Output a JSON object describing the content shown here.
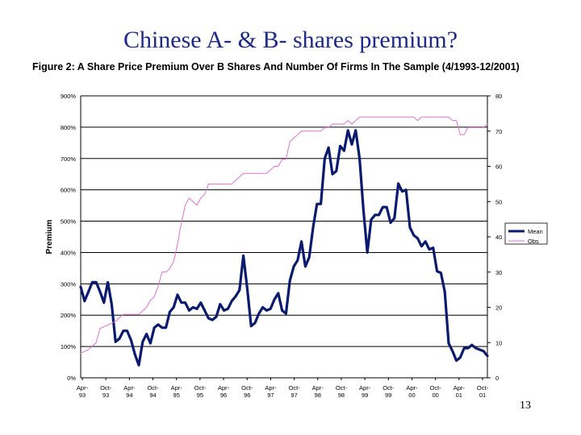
{
  "slide": {
    "title": "Chinese A- & B- shares premium?",
    "figure_title": "Figure 2: A Share Price Premium Over B Shares And Number Of Firms In The Sample (4/1993-12/2001)",
    "page_number": "13"
  },
  "chart_data": {
    "type": "line",
    "title": "Figure 2: A Share Price Premium Over B Shares And Number Of Firms In The Sample (4/1993-12/2001)",
    "ylabel": "Premium",
    "xlabel": "",
    "ylim": [
      0,
      900
    ],
    "y2lim": [
      0,
      80
    ],
    "yticks": [
      "0%",
      "100%",
      "200%",
      "300%",
      "400%",
      "500%",
      "600%",
      "700%",
      "800%",
      "900%"
    ],
    "y2ticks": [
      "0",
      "10",
      "20",
      "30",
      "40",
      "50",
      "60",
      "70",
      "80"
    ],
    "xticks": [
      [
        "Apr-",
        "93"
      ],
      [
        "Oct-",
        "93"
      ],
      [
        "Apr-",
        "94"
      ],
      [
        "Oct-",
        "94"
      ],
      [
        "Apr-",
        "95"
      ],
      [
        "Oct-",
        "95"
      ],
      [
        "Apr-",
        "96"
      ],
      [
        "Oct-",
        "96"
      ],
      [
        "Apr-",
        "97"
      ],
      [
        "Oct-",
        "97"
      ],
      [
        "Apr-",
        "98"
      ],
      [
        "Oct-",
        "98"
      ],
      [
        "Apr-",
        "99"
      ],
      [
        "Oct-",
        "99"
      ],
      [
        "Apr-",
        "00"
      ],
      [
        "Oct-",
        "00"
      ],
      [
        "Apr-",
        "01"
      ],
      [
        "Oct-",
        "01"
      ]
    ],
    "x_range": [
      0,
      105
    ],
    "grid": true,
    "legend_position": "right",
    "series": [
      {
        "name": "Mean",
        "axis": "left",
        "color": "#0a1a6e",
        "x": [
          0,
          1,
          2,
          3,
          4,
          5,
          6,
          7,
          8,
          9,
          10,
          11,
          12,
          13,
          14,
          15,
          16,
          17,
          18,
          19,
          20,
          21,
          22,
          23,
          24,
          25,
          26,
          27,
          28,
          29,
          30,
          31,
          32,
          33,
          34,
          35,
          36,
          37,
          38,
          39,
          40,
          41,
          42,
          43,
          44,
          45,
          46,
          47,
          48,
          49,
          50,
          51,
          52,
          53,
          54,
          55,
          56,
          57,
          58,
          59,
          60,
          61,
          62,
          63,
          64,
          65,
          66,
          67,
          68,
          69,
          70,
          71,
          72,
          73,
          74,
          75,
          76,
          77,
          78,
          79,
          80,
          81,
          82,
          83,
          84,
          85,
          86,
          87,
          88,
          89,
          90,
          91,
          92,
          93,
          94,
          95,
          96,
          97,
          98,
          99,
          100,
          101,
          102,
          103,
          104,
          105
        ],
        "values": [
          290,
          245,
          275,
          305,
          305,
          275,
          240,
          305,
          235,
          115,
          125,
          150,
          150,
          120,
          75,
          40,
          115,
          140,
          110,
          160,
          170,
          160,
          160,
          210,
          225,
          265,
          240,
          240,
          215,
          225,
          220,
          240,
          215,
          190,
          185,
          195,
          235,
          215,
          220,
          245,
          260,
          280,
          390,
          285,
          165,
          175,
          205,
          225,
          215,
          220,
          250,
          270,
          215,
          205,
          310,
          355,
          375,
          435,
          355,
          385,
          480,
          555,
          555,
          700,
          735,
          650,
          660,
          740,
          725,
          790,
          745,
          790,
          700,
          535,
          400,
          505,
          520,
          520,
          545,
          545,
          495,
          510,
          620,
          595,
          600,
          480,
          455,
          445,
          420,
          435,
          410,
          415,
          340,
          335,
          275,
          110,
          85,
          55,
          65,
          95,
          95,
          105,
          95,
          90,
          85,
          70
        ]
      },
      {
        "name": "Obs",
        "axis": "right",
        "color": "#e26fd6",
        "x": [
          0,
          1,
          2,
          3,
          4,
          5,
          6,
          7,
          8,
          9,
          10,
          11,
          12,
          13,
          14,
          15,
          16,
          17,
          18,
          19,
          20,
          21,
          22,
          23,
          24,
          25,
          26,
          27,
          28,
          29,
          30,
          31,
          32,
          33,
          34,
          35,
          36,
          37,
          38,
          39,
          40,
          41,
          42,
          43,
          44,
          45,
          46,
          47,
          48,
          49,
          50,
          51,
          52,
          53,
          54,
          55,
          56,
          57,
          58,
          59,
          60,
          61,
          62,
          63,
          64,
          65,
          66,
          67,
          68,
          69,
          70,
          71,
          72,
          73,
          74,
          75,
          76,
          77,
          78,
          79,
          80,
          81,
          82,
          83,
          84,
          85,
          86,
          87,
          88,
          89,
          90,
          91,
          92,
          93,
          94,
          95,
          96,
          97,
          98,
          99,
          100,
          101,
          102,
          103,
          104,
          105
        ],
        "values": [
          7,
          7.5,
          8,
          9,
          10,
          14,
          14.5,
          15,
          15.5,
          16,
          17,
          18,
          18,
          18,
          18,
          18,
          19,
          20,
          22,
          23,
          26,
          30,
          30,
          31,
          33,
          38,
          44,
          49,
          51,
          50,
          49,
          51,
          52,
          55,
          55,
          55,
          55,
          55,
          55,
          55,
          56,
          57,
          58,
          58,
          58,
          58,
          58,
          58,
          58,
          59,
          60,
          60,
          62,
          62,
          67,
          68,
          69,
          70,
          70,
          70,
          70,
          70,
          70,
          71,
          71,
          72,
          72,
          72,
          72,
          73,
          72,
          73,
          74,
          74,
          74,
          74,
          74,
          74,
          74,
          74,
          74,
          74,
          74,
          74,
          74,
          74,
          74,
          73,
          74,
          74,
          74,
          74,
          74,
          74,
          74,
          74,
          73,
          73,
          69,
          69,
          71,
          71,
          71,
          71,
          71,
          72
        ]
      }
    ]
  }
}
